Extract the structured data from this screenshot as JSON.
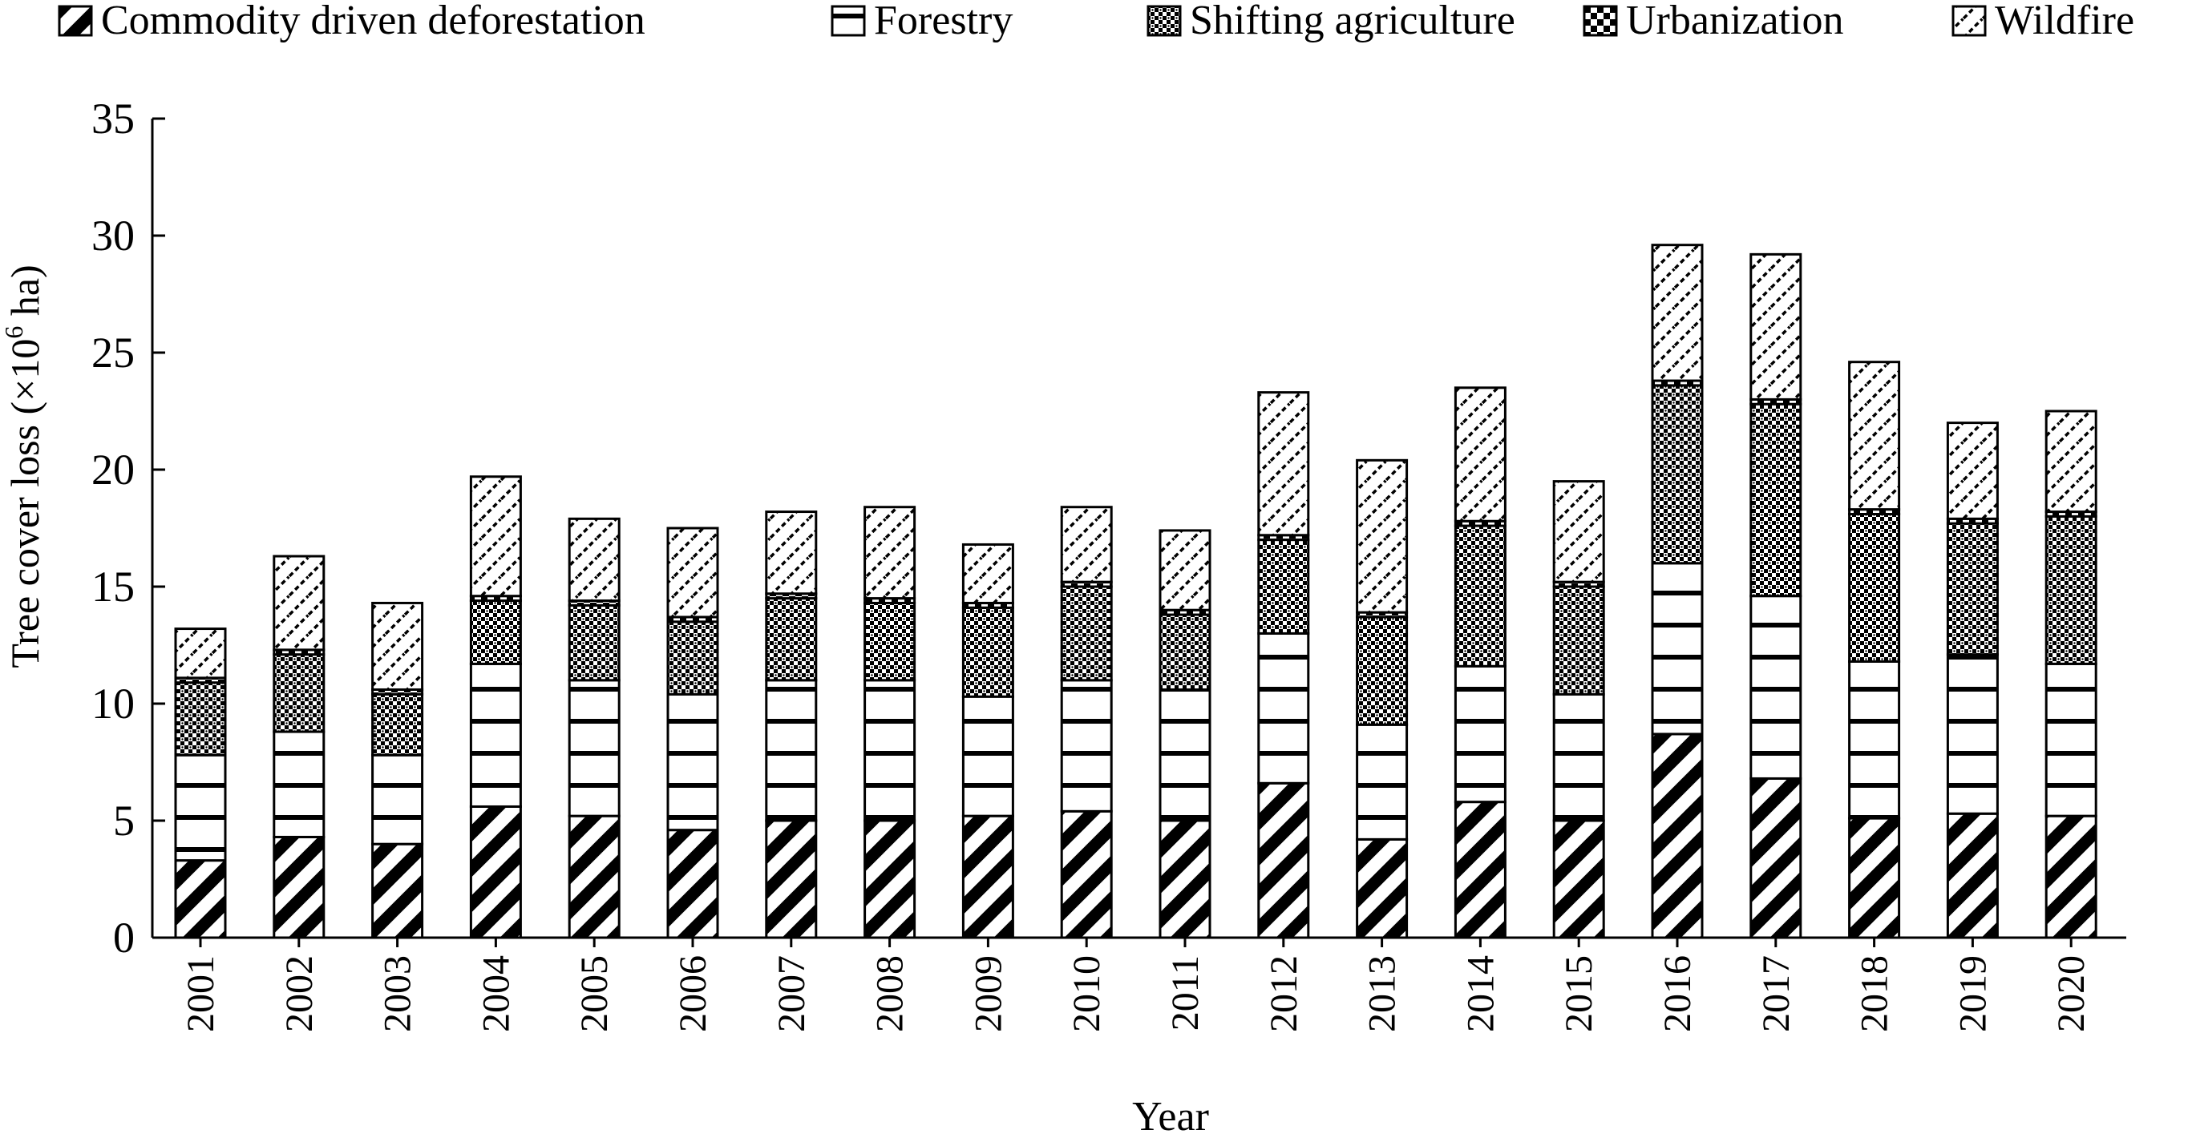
{
  "chart_data": {
    "type": "bar",
    "stacked": true,
    "xlabel": "Year",
    "ylabel_main": "Tree cover loss (×10",
    "ylabel_sup": "6",
    "ylabel_tail": " ha)",
    "ylim": [
      0,
      35
    ],
    "yticks": [
      "0",
      "5",
      "10",
      "15",
      "20",
      "25",
      "30",
      "35"
    ],
    "ytick_values": [
      0,
      5,
      10,
      15,
      20,
      25,
      30,
      35
    ],
    "grid": false,
    "legend_position": "top",
    "categories": [
      "2001",
      "2002",
      "2003",
      "2004",
      "2005",
      "2006",
      "2007",
      "2008",
      "2009",
      "2010",
      "2011",
      "2012",
      "2013",
      "2014",
      "2015",
      "2016",
      "2017",
      "2018",
      "2019",
      "2020"
    ],
    "series": [
      {
        "name": "Commodity driven deforestation",
        "pattern": "diagonal-bold",
        "values": [
          3.3,
          4.3,
          4.0,
          5.6,
          5.2,
          4.6,
          5.0,
          5.0,
          5.2,
          5.4,
          5.0,
          6.6,
          4.2,
          5.8,
          5.0,
          8.7,
          6.8,
          5.1,
          5.3,
          5.2
        ]
      },
      {
        "name": "Forestry",
        "pattern": "horizontal",
        "values": [
          4.5,
          4.5,
          3.8,
          6.1,
          5.8,
          5.8,
          6.0,
          6.0,
          5.1,
          5.6,
          5.6,
          6.4,
          4.9,
          5.8,
          5.4,
          7.3,
          7.8,
          6.7,
          6.8,
          6.5
        ]
      },
      {
        "name": "Shifting agriculture",
        "pattern": "crosshatch",
        "values": [
          3.1,
          3.3,
          2.6,
          2.7,
          3.2,
          3.1,
          3.5,
          3.3,
          3.8,
          4.0,
          3.2,
          4.0,
          4.6,
          6.0,
          4.6,
          7.6,
          8.2,
          6.3,
          5.6,
          6.3
        ]
      },
      {
        "name": "Urbanization",
        "pattern": "checker",
        "values": [
          0.2,
          0.2,
          0.2,
          0.2,
          0.2,
          0.2,
          0.2,
          0.2,
          0.2,
          0.2,
          0.2,
          0.2,
          0.2,
          0.2,
          0.2,
          0.2,
          0.2,
          0.2,
          0.2,
          0.2
        ]
      },
      {
        "name": "Wildfire",
        "pattern": "diagonal-fine",
        "values": [
          2.1,
          4.0,
          3.7,
          5.1,
          3.5,
          3.8,
          3.5,
          3.9,
          2.5,
          3.2,
          3.4,
          6.1,
          6.5,
          5.7,
          4.3,
          5.8,
          6.2,
          6.3,
          4.1,
          4.3
        ]
      }
    ]
  }
}
